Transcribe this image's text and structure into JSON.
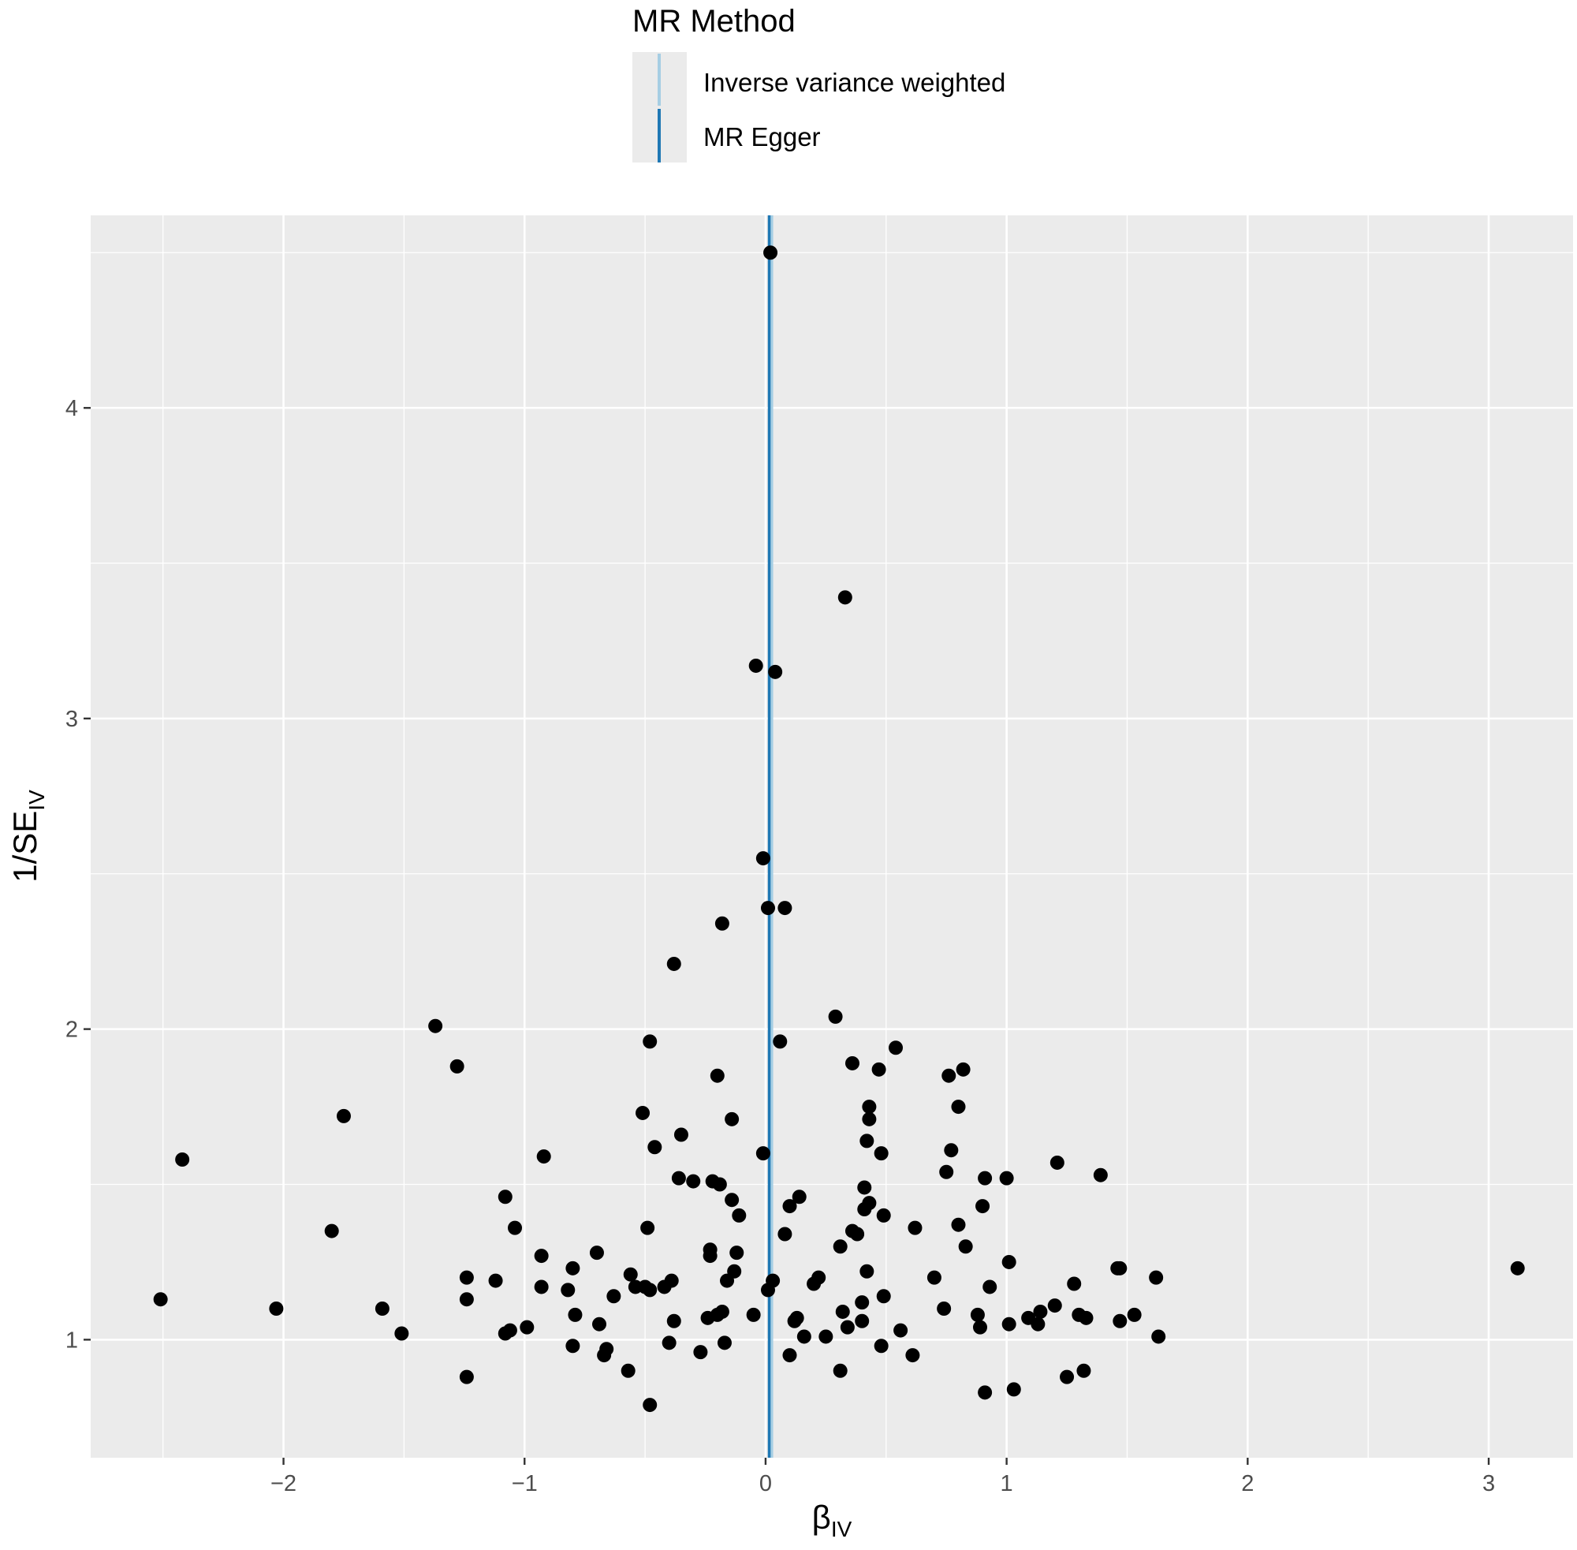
{
  "chart_data": {
    "type": "scatter",
    "xlabel_main": "β",
    "xlabel_sub": "IV",
    "ylabel_main": "1/SE",
    "ylabel_sub": "IV",
    "xlim": [
      -2.8,
      3.35
    ],
    "ylim": [
      0.62,
      4.62
    ],
    "x_ticks": [
      -2,
      -1,
      0,
      1,
      2,
      3
    ],
    "x_tick_labels": [
      "−2",
      "−1",
      "0",
      "1",
      "2",
      "3"
    ],
    "y_ticks": [
      1,
      2,
      3,
      4
    ],
    "y_tick_labels": [
      "1",
      "2",
      "3",
      "4"
    ],
    "grid": true,
    "panel_background": "#ebebeb",
    "legend": {
      "title": "MR Method",
      "placement": "top",
      "entries": [
        {
          "label": "Inverse variance weighted",
          "color": "#a6cee3"
        },
        {
          "label": "MR Egger",
          "color": "#1f78b4"
        }
      ]
    },
    "reference_lines": [
      {
        "name": "Inverse variance weighted",
        "x": 0.025,
        "color": "#a6cee3"
      },
      {
        "name": "MR Egger",
        "x": 0.015,
        "color": "#1f78b4"
      }
    ],
    "point_color": "#000000",
    "points": [
      [
        0.02,
        4.5
      ],
      [
        0.33,
        3.39
      ],
      [
        -0.04,
        3.17
      ],
      [
        0.04,
        3.15
      ],
      [
        -0.01,
        2.55
      ],
      [
        0.01,
        2.39
      ],
      [
        0.08,
        2.39
      ],
      [
        -0.18,
        2.34
      ],
      [
        -0.38,
        2.21
      ],
      [
        0.29,
        2.04
      ],
      [
        -1.37,
        2.01
      ],
      [
        -0.48,
        1.96
      ],
      [
        0.06,
        1.96
      ],
      [
        0.54,
        1.94
      ],
      [
        0.36,
        1.89
      ],
      [
        -1.28,
        1.88
      ],
      [
        0.47,
        1.87
      ],
      [
        0.82,
        1.87
      ],
      [
        -0.2,
        1.85
      ],
      [
        0.76,
        1.85
      ],
      [
        0.8,
        1.75
      ],
      [
        0.43,
        1.75
      ],
      [
        -1.75,
        1.72
      ],
      [
        -0.51,
        1.73
      ],
      [
        -0.14,
        1.71
      ],
      [
        0.43,
        1.71
      ],
      [
        -0.35,
        1.66
      ],
      [
        0.42,
        1.64
      ],
      [
        -0.46,
        1.62
      ],
      [
        0.77,
        1.61
      ],
      [
        -0.01,
        1.6
      ],
      [
        0.48,
        1.6
      ],
      [
        -2.42,
        1.58
      ],
      [
        -0.92,
        1.59
      ],
      [
        1.21,
        1.57
      ],
      [
        0.75,
        1.54
      ],
      [
        1.39,
        1.53
      ],
      [
        -0.36,
        1.52
      ],
      [
        0.91,
        1.52
      ],
      [
        1.0,
        1.52
      ],
      [
        -0.3,
        1.51
      ],
      [
        -0.22,
        1.51
      ],
      [
        -0.19,
        1.5
      ],
      [
        0.41,
        1.49
      ],
      [
        -1.08,
        1.46
      ],
      [
        0.14,
        1.46
      ],
      [
        -0.14,
        1.45
      ],
      [
        0.43,
        1.44
      ],
      [
        0.1,
        1.43
      ],
      [
        0.9,
        1.43
      ],
      [
        0.41,
        1.42
      ],
      [
        -0.11,
        1.4
      ],
      [
        0.49,
        1.4
      ],
      [
        -1.04,
        1.36
      ],
      [
        -0.49,
        1.36
      ],
      [
        0.62,
        1.36
      ],
      [
        0.8,
        1.37
      ],
      [
        -1.8,
        1.35
      ],
      [
        0.36,
        1.35
      ],
      [
        0.38,
        1.34
      ],
      [
        0.08,
        1.34
      ],
      [
        0.83,
        1.3
      ],
      [
        0.31,
        1.3
      ],
      [
        -0.23,
        1.29
      ],
      [
        -0.7,
        1.28
      ],
      [
        -0.93,
        1.27
      ],
      [
        -0.23,
        1.27
      ],
      [
        -0.12,
        1.28
      ],
      [
        1.01,
        1.25
      ],
      [
        -0.8,
        1.23
      ],
      [
        1.46,
        1.23
      ],
      [
        1.47,
        1.23
      ],
      [
        0.42,
        1.22
      ],
      [
        -0.13,
        1.22
      ],
      [
        -0.56,
        1.21
      ],
      [
        -1.24,
        1.2
      ],
      [
        0.7,
        1.2
      ],
      [
        1.62,
        1.2
      ],
      [
        0.22,
        1.2
      ],
      [
        -1.12,
        1.19
      ],
      [
        -0.39,
        1.19
      ],
      [
        -0.16,
        1.19
      ],
      [
        0.2,
        1.18
      ],
      [
        0.03,
        1.19
      ],
      [
        1.28,
        1.18
      ],
      [
        0.93,
        1.17
      ],
      [
        -0.93,
        1.17
      ],
      [
        -0.54,
        1.17
      ],
      [
        -0.5,
        1.17
      ],
      [
        -0.42,
        1.17
      ],
      [
        -0.82,
        1.16
      ],
      [
        -0.48,
        1.16
      ],
      [
        0.01,
        1.16
      ],
      [
        -0.63,
        1.14
      ],
      [
        0.49,
        1.14
      ],
      [
        -2.51,
        1.13
      ],
      [
        -1.24,
        1.13
      ],
      [
        0.4,
        1.12
      ],
      [
        1.2,
        1.11
      ],
      [
        0.74,
        1.1
      ],
      [
        -2.03,
        1.1
      ],
      [
        -1.59,
        1.1
      ],
      [
        1.14,
        1.09
      ],
      [
        0.32,
        1.09
      ],
      [
        -0.18,
        1.09
      ],
      [
        -0.79,
        1.08
      ],
      [
        -0.2,
        1.08
      ],
      [
        -0.05,
        1.08
      ],
      [
        -0.24,
        1.07
      ],
      [
        0.88,
        1.08
      ],
      [
        1.3,
        1.08
      ],
      [
        1.53,
        1.08
      ],
      [
        1.09,
        1.07
      ],
      [
        0.13,
        1.07
      ],
      [
        1.33,
        1.07
      ],
      [
        0.4,
        1.06
      ],
      [
        1.47,
        1.06
      ],
      [
        -0.38,
        1.06
      ],
      [
        0.12,
        1.06
      ],
      [
        1.13,
        1.05
      ],
      [
        1.01,
        1.05
      ],
      [
        -0.69,
        1.05
      ],
      [
        0.34,
        1.04
      ],
      [
        -0.99,
        1.04
      ],
      [
        0.89,
        1.04
      ],
      [
        -1.06,
        1.03
      ],
      [
        -1.08,
        1.02
      ],
      [
        0.56,
        1.03
      ],
      [
        -1.51,
        1.02
      ],
      [
        1.63,
        1.01
      ],
      [
        0.16,
        1.01
      ],
      [
        0.25,
        1.01
      ],
      [
        -0.4,
        0.99
      ],
      [
        -0.17,
        0.99
      ],
      [
        0.48,
        0.98
      ],
      [
        -0.8,
        0.98
      ],
      [
        -0.66,
        0.97
      ],
      [
        -0.27,
        0.96
      ],
      [
        -0.67,
        0.95
      ],
      [
        0.61,
        0.95
      ],
      [
        0.1,
        0.95
      ],
      [
        -0.57,
        0.9
      ],
      [
        0.31,
        0.9
      ],
      [
        1.32,
        0.9
      ],
      [
        -1.24,
        0.88
      ],
      [
        1.25,
        0.88
      ],
      [
        1.03,
        0.84
      ],
      [
        0.91,
        0.83
      ],
      [
        -0.48,
        0.79
      ],
      [
        3.12,
        1.23
      ]
    ]
  }
}
